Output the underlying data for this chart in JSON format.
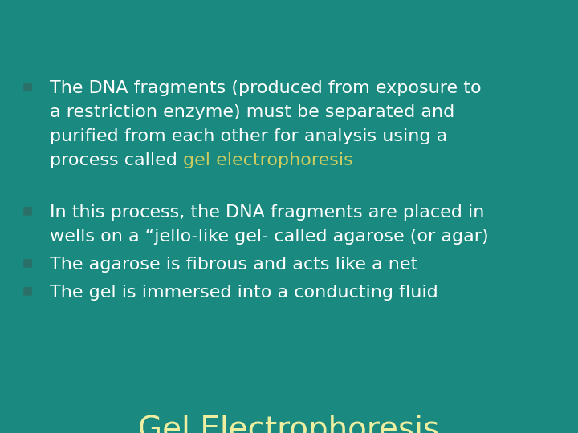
{
  "title": "Gel Electrophoresis",
  "title_color": "#eeeea0",
  "title_fontsize": 28,
  "background_color": "#1a8a80",
  "bullet_color": "#ffffff",
  "bullet_marker_color": "#2a7068",
  "highlight_color": "#cccc60",
  "bullet_fontsize": 16,
  "figsize": [
    7.2,
    5.4
  ],
  "dpi": 100,
  "bullet1_lines": [
    [
      {
        "text": "The DNA fragments (produced from exposure to",
        "color": "#ffffff"
      }
    ],
    [
      {
        "text": "a restriction enzyme) must be separated and",
        "color": "#ffffff"
      }
    ],
    [
      {
        "text": "purified from each other for analysis using a",
        "color": "#ffffff"
      }
    ],
    [
      {
        "text": "process called ",
        "color": "#ffffff"
      },
      {
        "text": "gel electrophoresis",
        "color": "#cccc60"
      }
    ]
  ],
  "bullet2_lines": [
    [
      {
        "text": "In this process, the DNA fragments are placed in",
        "color": "#ffffff"
      }
    ],
    [
      {
        "text": "wells on a “jello-like gel- called agarose (or agar)",
        "color": "#ffffff"
      }
    ]
  ],
  "bullet3_lines": [
    [
      {
        "text": "The agarose is fibrous and acts like a net",
        "color": "#ffffff"
      }
    ]
  ],
  "bullet4_lines": [
    [
      {
        "text": "The gel is immersed into a conducting fluid",
        "color": "#ffffff"
      }
    ]
  ]
}
